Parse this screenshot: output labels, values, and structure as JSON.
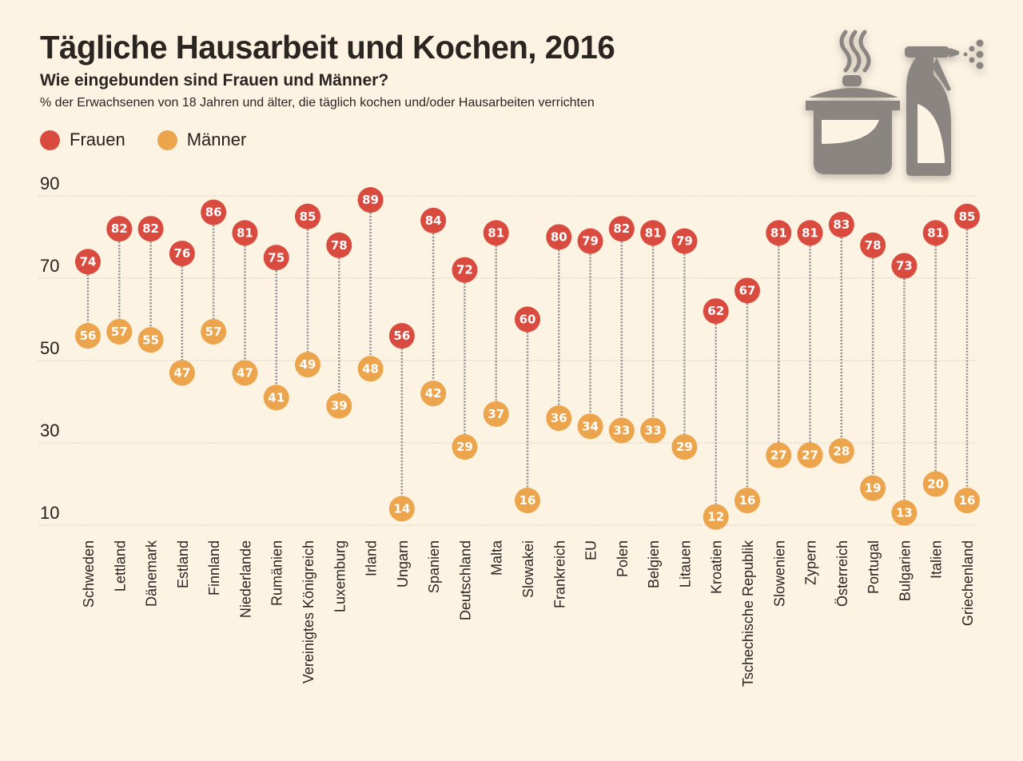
{
  "header": {
    "title": "Tägliche Hausarbeit und Kochen, 2016",
    "subtitle": "Wie eingebunden sind Frauen und Männer?",
    "note": "% der Erwachsenen von 18 Jahren und älter, die täglich kochen und/oder Hausarbeiten verrichten"
  },
  "icons": [
    "cooking-pot-icon",
    "spray-bottle-icon"
  ],
  "colors": {
    "frauen": "#d94b3f",
    "maenner": "#eca54c",
    "background": "#fdf3e3",
    "connector": "#8f8f8f",
    "icon": "#8a8580"
  },
  "chart_data": {
    "type": "scatter",
    "subtype": "dumbbell",
    "title": "Tägliche Hausarbeit und Kochen, 2016",
    "subtitle": "Wie eingebunden sind Frauen und Männer?",
    "ylabel": "% der Erwachsenen von 18 Jahren und älter, die täglich kochen und/oder Hausarbeiten verrichten",
    "xlabel": "",
    "ylim": [
      10,
      90
    ],
    "yticks": [
      90,
      70,
      50,
      30,
      10
    ],
    "grid": true,
    "legend_position": "top-left",
    "categories": [
      "Schweden",
      "Lettland",
      "Dänemark",
      "Estland",
      "Finnland",
      "Niederlande",
      "Rumänien",
      "Vereinigtes Königreich",
      "Luxemburg",
      "Irland",
      "Ungarn",
      "Spanien",
      "Deutschland",
      "Malta",
      "Slowakei",
      "Frankreich",
      "EU",
      "Polen",
      "Belgien",
      "Litauen",
      "Kroatien",
      "Tschechische Republik",
      "Slowenien",
      "Zypern",
      "Österreich",
      "Portugal",
      "Bulgarien",
      "Italien",
      "Griechenland"
    ],
    "series": [
      {
        "name": "Frauen",
        "color": "#d94b3f",
        "values": [
          74,
          82,
          82,
          76,
          86,
          81,
          75,
          85,
          78,
          89,
          56,
          84,
          72,
          81,
          60,
          80,
          79,
          82,
          81,
          79,
          62,
          67,
          81,
          81,
          83,
          78,
          73,
          81,
          85
        ]
      },
      {
        "name": "Männer",
        "color": "#eca54c",
        "values": [
          56,
          57,
          55,
          47,
          57,
          47,
          41,
          49,
          39,
          48,
          14,
          42,
          29,
          37,
          16,
          36,
          34,
          33,
          33,
          29,
          12,
          16,
          27,
          27,
          28,
          19,
          13,
          20,
          16
        ]
      }
    ]
  }
}
